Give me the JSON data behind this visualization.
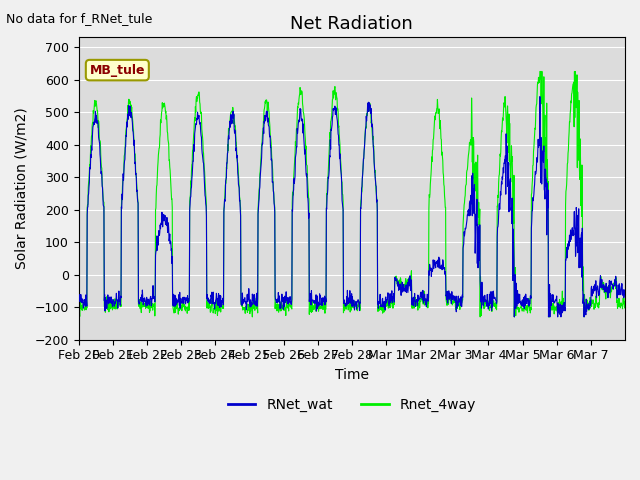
{
  "title": "Net Radiation",
  "xlabel": "Time",
  "ylabel": "Solar Radiation (W/m2)",
  "no_data_text": "No data for f_RNet_tule",
  "mb_tule_label": "MB_tule",
  "ylim": [
    -200,
    730
  ],
  "yticks": [
    -200,
    -100,
    0,
    100,
    200,
    300,
    400,
    500,
    600,
    700
  ],
  "x_tick_labels": [
    "Feb 20",
    "Feb 21",
    "Feb 22",
    "Feb 23",
    "Feb 24",
    "Feb 25",
    "Feb 26",
    "Feb 27",
    "Feb 28",
    "Mar 1",
    "Mar 2",
    "Mar 3",
    "Mar 4",
    "Mar 5",
    "Mar 6",
    "Mar 7"
  ],
  "x_tick_positions": [
    0,
    1,
    2,
    3,
    4,
    5,
    6,
    7,
    8,
    9,
    10,
    11,
    12,
    13,
    14,
    15
  ],
  "line1_color": "#0000cc",
  "line2_color": "#00ee00",
  "legend_entries": [
    "RNet_wat",
    "Rnet_4way"
  ],
  "fig_bg_color": "#f0f0f0",
  "plot_bg_color": "#dcdcdc",
  "title_fontsize": 13,
  "label_fontsize": 10,
  "tick_fontsize": 9
}
